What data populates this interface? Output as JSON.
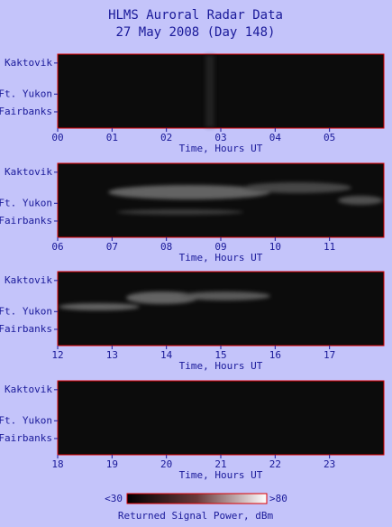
{
  "title": "HLMS Auroral Radar Data",
  "subtitle": "27 May 2008 (Day 148)",
  "chart_data": [
    {
      "type": "heatmap",
      "xlabel": "Time, Hours UT",
      "categories": [
        "Kaktovik",
        "Ft. Yukon",
        "Fairbanks"
      ],
      "xlim": [
        0,
        6
      ],
      "xticks": [
        {
          "value": 0,
          "label": "00"
        },
        {
          "value": 1,
          "label": "01"
        },
        {
          "value": 2,
          "label": "02"
        },
        {
          "value": 3,
          "label": "03"
        },
        {
          "value": 4,
          "label": "04"
        },
        {
          "value": 5,
          "label": "05"
        }
      ]
    },
    {
      "type": "heatmap",
      "xlabel": "Time, Hours UT",
      "categories": [
        "Kaktovik",
        "Ft. Yukon",
        "Fairbanks"
      ],
      "xlim": [
        6,
        12
      ],
      "xticks": [
        {
          "value": 6,
          "label": "06"
        },
        {
          "value": 7,
          "label": "07"
        },
        {
          "value": 8,
          "label": "08"
        },
        {
          "value": 9,
          "label": "09"
        },
        10,
        11
      ]
    },
    {
      "type": "heatmap",
      "xlabel": "Time, Hours UT",
      "categories": [
        "Kaktovik",
        "Ft. Yukon",
        "Fairbanks"
      ],
      "xlim": [
        12,
        18
      ],
      "xticks": [
        12,
        13,
        14,
        15,
        16,
        17
      ]
    },
    {
      "type": "heatmap",
      "xlabel": "Time, Hours UT",
      "categories": [
        "Kaktovik",
        "Ft. Yukon",
        "Fairbanks"
      ],
      "xlim": [
        18,
        24
      ],
      "xticks": [
        18,
        19,
        20,
        21,
        22,
        23
      ]
    }
  ],
  "colorbar": {
    "label": "Returned Signal Power, dBm",
    "lim": [
      30,
      80
    ],
    "ticks": [
      {
        "value": 30,
        "label": "<30"
      },
      {
        "value": 80,
        "label": ">80"
      }
    ]
  }
}
